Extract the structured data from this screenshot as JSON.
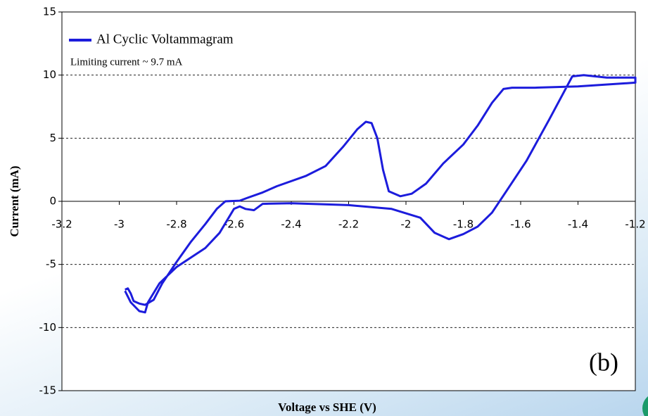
{
  "chart_data": {
    "type": "line",
    "x_label": "Voltage vs SHE (V)",
    "y_label": "Current (mA)",
    "annotations": [
      "Limiting current ~ 9.7 mA",
      "(b)"
    ],
    "xlim": [
      -3.2,
      -1.2
    ],
    "xticks": [
      -3.2,
      -3,
      -2.8,
      -2.6,
      -2.4,
      -2.2,
      -2,
      -1.8,
      -1.6,
      -1.4,
      -1.2
    ],
    "ylim": [
      -15,
      15
    ],
    "yticks": [
      -15,
      -10,
      -5,
      0,
      5,
      10,
      15
    ],
    "grid": true,
    "series": [
      {
        "name": "Al Cyclic Voltammagram",
        "color": "#1c1cdc",
        "x": [
          -2.98,
          -2.97,
          -2.96,
          -2.95,
          -2.93,
          -2.91,
          -2.88,
          -2.85,
          -2.8,
          -2.75,
          -2.7,
          -2.66,
          -2.63,
          -2.58,
          -2.55,
          -2.5,
          -2.45,
          -2.35,
          -2.28,
          -2.22,
          -2.17,
          -2.14,
          -2.12,
          -2.1,
          -2.08,
          -2.06,
          -2.02,
          -1.98,
          -1.93,
          -1.87,
          -1.8,
          -1.75,
          -1.7,
          -1.66,
          -1.63,
          -1.55,
          -1.4,
          -1.2,
          -1.2,
          -1.3,
          -1.38,
          -1.42,
          -1.5,
          -1.58,
          -1.65,
          -1.7,
          -1.75,
          -1.8,
          -1.85,
          -1.9,
          -1.95,
          -2.05,
          -2.2,
          -2.4,
          -2.5,
          -2.53,
          -2.56,
          -2.58,
          -2.6,
          -2.65,
          -2.7,
          -2.8,
          -2.86,
          -2.9,
          -2.91,
          -2.93,
          -2.96,
          -2.98
        ],
        "values": [
          -7.0,
          -6.9,
          -7.3,
          -7.9,
          -8.1,
          -8.2,
          -7.8,
          -6.5,
          -4.8,
          -3.2,
          -1.8,
          -0.6,
          0,
          0.05,
          0.3,
          0.7,
          1.2,
          2.0,
          2.8,
          4.3,
          5.7,
          6.3,
          6.2,
          5.0,
          2.5,
          0.8,
          0.4,
          0.6,
          1.4,
          3.0,
          4.5,
          6.0,
          7.8,
          8.9,
          9.0,
          9.0,
          9.1,
          9.4,
          9.8,
          9.8,
          10.0,
          9.9,
          6.5,
          3.2,
          0.8,
          -0.9,
          -2.0,
          -2.6,
          -3.0,
          -2.5,
          -1.3,
          -0.6,
          -0.3,
          -0.15,
          -0.2,
          -0.7,
          -0.6,
          -0.4,
          -0.6,
          -2.5,
          -3.7,
          -5.2,
          -6.5,
          -8.0,
          -8.8,
          -8.7,
          -8.0,
          -7.1
        ]
      }
    ]
  }
}
